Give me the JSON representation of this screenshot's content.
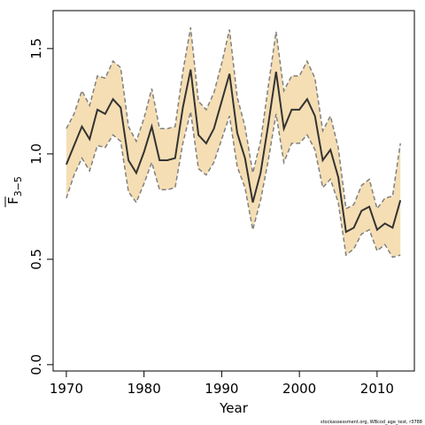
{
  "chart_data": {
    "type": "line",
    "xlabel": "Year",
    "ylabel": "F",
    "ylabel_subscript": "3−5",
    "footer": "stockassessment.org, WBcod_age_test, r3788",
    "xlim": [
      1968.3,
      2014.8
    ],
    "ylim": [
      -0.03,
      1.68
    ],
    "x_ticks": [
      1970,
      1980,
      1990,
      2000,
      2010
    ],
    "y_ticks": [
      0.0,
      0.5,
      1.0,
      1.5
    ],
    "y_tick_labels": [
      "0.0",
      "0.5",
      "1.0",
      "1.5"
    ],
    "grid": false,
    "colors": {
      "band": "#f5deb3",
      "band_edge": "#808080",
      "line": "#333333"
    },
    "series": [
      {
        "x": [
          1970,
          1971,
          1972,
          1973,
          1974,
          1975,
          1976,
          1977,
          1978,
          1979,
          1980,
          1981,
          1982,
          1983,
          1984,
          1985,
          1986,
          1987,
          1988,
          1989,
          1990,
          1991,
          1992,
          1993,
          1994,
          1995,
          1996,
          1997,
          1998,
          1999,
          2000,
          2001,
          2002,
          2003,
          2004,
          2005,
          2006,
          2007,
          2008,
          2009,
          2010,
          2011,
          2012,
          2013
        ],
        "y": [
          0.95,
          1.04,
          1.13,
          1.07,
          1.21,
          1.19,
          1.26,
          1.22,
          0.97,
          0.91,
          1.01,
          1.13,
          0.97,
          0.97,
          0.98,
          1.22,
          1.4,
          1.09,
          1.05,
          1.12,
          1.25,
          1.38,
          1.1,
          0.98,
          0.77,
          0.91,
          1.14,
          1.39,
          1.12,
          1.21,
          1.21,
          1.26,
          1.18,
          0.97,
          1.02,
          0.89,
          0.63,
          0.65,
          0.73,
          0.75,
          0.64,
          0.67,
          0.65,
          0.78
        ],
        "lower": [
          0.79,
          0.9,
          0.98,
          0.92,
          1.04,
          1.03,
          1.09,
          1.06,
          0.82,
          0.77,
          0.86,
          0.96,
          0.83,
          0.83,
          0.84,
          1.05,
          1.2,
          0.93,
          0.9,
          0.96,
          1.07,
          1.18,
          0.94,
          0.84,
          0.64,
          0.78,
          0.97,
          1.19,
          0.96,
          1.05,
          1.05,
          1.09,
          1.02,
          0.84,
          0.88,
          0.77,
          0.52,
          0.55,
          0.62,
          0.64,
          0.54,
          0.57,
          0.51,
          0.52
        ],
        "upper": [
          1.12,
          1.19,
          1.3,
          1.23,
          1.37,
          1.36,
          1.44,
          1.41,
          1.13,
          1.06,
          1.17,
          1.31,
          1.12,
          1.12,
          1.13,
          1.39,
          1.6,
          1.25,
          1.21,
          1.29,
          1.43,
          1.59,
          1.27,
          1.13,
          0.91,
          1.06,
          1.32,
          1.58,
          1.3,
          1.37,
          1.37,
          1.44,
          1.36,
          1.11,
          1.18,
          1.03,
          0.74,
          0.76,
          0.85,
          0.88,
          0.74,
          0.79,
          0.8,
          1.05
        ]
      }
    ]
  }
}
